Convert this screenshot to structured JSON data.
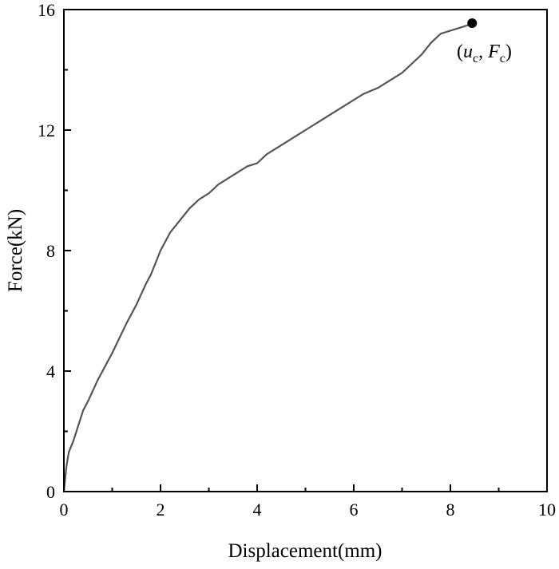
{
  "chart_data": {
    "type": "line",
    "xlabel": "Displacement(mm)",
    "ylabel": "Force(kN)",
    "xlim": [
      0,
      10
    ],
    "ylim": [
      0,
      16
    ],
    "x_ticks": [
      0,
      2,
      4,
      6,
      8,
      10
    ],
    "y_ticks": [
      0,
      4,
      8,
      12,
      16
    ],
    "grid": false,
    "line_color": "#555555",
    "series": [
      {
        "x": [
          0,
          0.05,
          0.1,
          0.2,
          0.3,
          0.4,
          0.5,
          0.7,
          1.0,
          1.3,
          1.5,
          1.7,
          1.8,
          1.9,
          2.0,
          2.2,
          2.4,
          2.6,
          2.8,
          3.0,
          3.2,
          3.4,
          3.6,
          3.8,
          4.0,
          4.2,
          4.5,
          4.8,
          5.0,
          5.3,
          5.6,
          5.8,
          6.0,
          6.2,
          6.5,
          6.8,
          7.0,
          7.2,
          7.4,
          7.6,
          7.8,
          8.0,
          8.2,
          8.4,
          8.45
        ],
        "y": [
          0,
          0.8,
          1.3,
          1.7,
          2.2,
          2.7,
          3.0,
          3.7,
          4.6,
          5.6,
          6.2,
          6.9,
          7.2,
          7.6,
          8.0,
          8.6,
          9.0,
          9.4,
          9.7,
          9.9,
          10.2,
          10.4,
          10.6,
          10.8,
          10.9,
          11.2,
          11.5,
          11.8,
          12.0,
          12.3,
          12.6,
          12.8,
          13.0,
          13.2,
          13.4,
          13.7,
          13.9,
          14.2,
          14.5,
          14.9,
          15.2,
          15.3,
          15.4,
          15.5,
          15.55
        ]
      }
    ],
    "highlight_point": {
      "x": 8.45,
      "y": 15.55,
      "label": "(uc, Fc)"
    }
  },
  "annotation": {
    "open": "(",
    "u": "u",
    "c1": "c",
    "comma": ", ",
    "F": "F",
    "c2": "c",
    "close": ")"
  }
}
